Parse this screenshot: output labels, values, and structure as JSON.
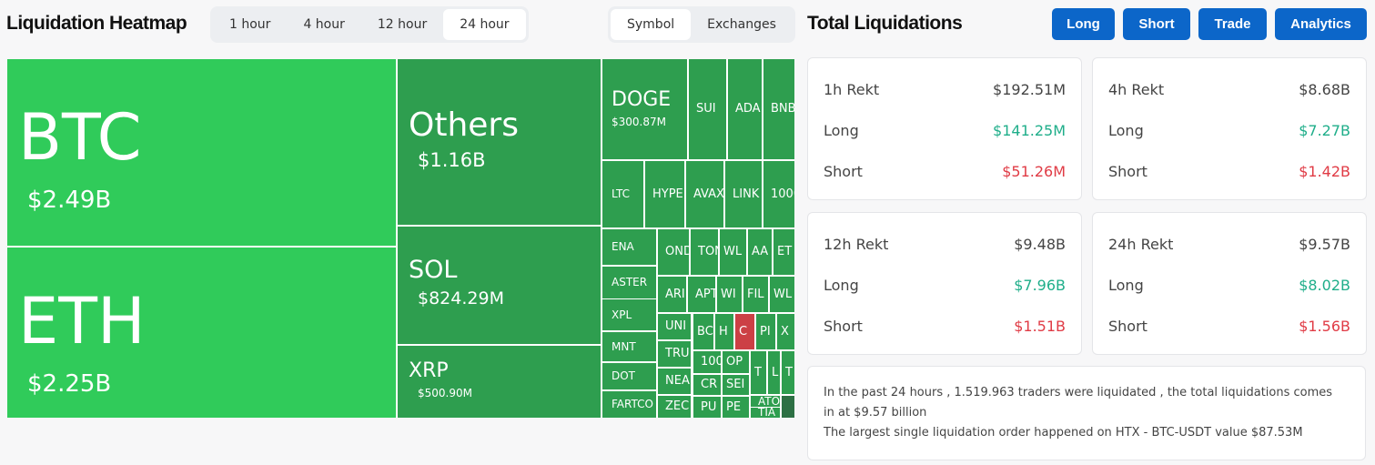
{
  "heatmap": {
    "title": "Liquidation Heatmap",
    "timeframes": [
      "1 hour",
      "4 hour",
      "12 hour",
      "24 hour"
    ],
    "active_timeframe": "24 hour",
    "views": [
      "Symbol",
      "Exchanges"
    ],
    "active_view": "Symbol",
    "colors": {
      "bright_green": "#30cb5a",
      "green": "#2e9e4f",
      "red": "#cc4045",
      "dark_green": "#2d7044"
    },
    "cells": [
      {
        "label": "BTC",
        "value": "$2.49B",
        "color": "#30cb5a"
      },
      {
        "label": "ETH",
        "value": "$2.25B",
        "color": "#30cb5a"
      },
      {
        "label": "Others",
        "value": "$1.16B",
        "color": "#2e9e4f"
      },
      {
        "label": "SOL",
        "value": "$824.29M",
        "color": "#2e9e4f"
      },
      {
        "label": "XRP",
        "value": "$500.90M",
        "color": "#2e9e4f"
      },
      {
        "label": "DOGE",
        "value": "$300.87M",
        "color": "#2e9e4f"
      },
      {
        "label": "SUI",
        "color": "#2e9e4f"
      },
      {
        "label": "ADA",
        "color": "#2e9e4f"
      },
      {
        "label": "BNB",
        "color": "#2e9e4f"
      },
      {
        "label": "LTC",
        "color": "#2e9e4f"
      },
      {
        "label": "HYPE",
        "color": "#2e9e4f"
      },
      {
        "label": "AVAX",
        "color": "#2e9e4f"
      },
      {
        "label": "LINK",
        "color": "#2e9e4f"
      },
      {
        "label": "1000",
        "color": "#2e9e4f"
      },
      {
        "label": "ENA",
        "color": "#2e9e4f"
      },
      {
        "label": "ASTER",
        "color": "#2e9e4f"
      },
      {
        "label": "XPL",
        "color": "#2e9e4f"
      },
      {
        "label": "MNT",
        "color": "#2e9e4f"
      },
      {
        "label": "DOT",
        "color": "#2e9e4f"
      },
      {
        "label": "FARTCO",
        "color": "#2e9e4f"
      },
      {
        "label": "OND",
        "color": "#2e9e4f"
      },
      {
        "label": "TON",
        "color": "#2e9e4f"
      },
      {
        "label": "WL",
        "color": "#2e9e4f"
      },
      {
        "label": "AA",
        "color": "#2e9e4f"
      },
      {
        "label": "ET",
        "color": "#2e9e4f"
      },
      {
        "label": "ARI",
        "color": "#2e9e4f"
      },
      {
        "label": "APT",
        "color": "#2e9e4f"
      },
      {
        "label": "WI",
        "color": "#2e9e4f"
      },
      {
        "label": "FIL",
        "color": "#2e9e4f"
      },
      {
        "label": "WL",
        "color": "#2e9e4f"
      },
      {
        "label": "UNI",
        "color": "#2e9e4f"
      },
      {
        "label": "TRU",
        "color": "#2e9e4f"
      },
      {
        "label": "NEA",
        "color": "#2e9e4f"
      },
      {
        "label": "ZEC",
        "color": "#2e9e4f"
      },
      {
        "label": "BC",
        "color": "#2e9e4f"
      },
      {
        "label": "H",
        "color": "#2e9e4f"
      },
      {
        "label": "C",
        "color": "#cc4045"
      },
      {
        "label": "PI",
        "color": "#2e9e4f"
      },
      {
        "label": "X",
        "color": "#2e9e4f"
      },
      {
        "label": "100",
        "color": "#2e9e4f"
      },
      {
        "label": "OP",
        "color": "#2e9e4f"
      },
      {
        "label": "CR",
        "color": "#2e9e4f"
      },
      {
        "label": "SEI",
        "color": "#2e9e4f"
      },
      {
        "label": "PU",
        "color": "#2e9e4f"
      },
      {
        "label": "PE",
        "color": "#2e9e4f"
      },
      {
        "label": "T",
        "color": "#2e9e4f"
      },
      {
        "label": "L",
        "color": "#2e9e4f"
      },
      {
        "label": "T",
        "color": "#2e9e4f"
      },
      {
        "label": "ATO",
        "color": "#2e9e4f"
      },
      {
        "label": "TIA",
        "color": "#2e9e4f"
      },
      {
        "label": "",
        "color": "#2d7044"
      }
    ]
  },
  "totals": {
    "title": "Total Liquidations",
    "buttons": [
      "Long",
      "Short",
      "Trade",
      "Analytics"
    ],
    "cards": [
      {
        "title": "1h Rekt",
        "total": "$192.51M",
        "long_label": "Long",
        "long": "$141.25M",
        "short_label": "Short",
        "short": "$51.26M"
      },
      {
        "title": "4h Rekt",
        "total": "$8.68B",
        "long_label": "Long",
        "long": "$7.27B",
        "short_label": "Short",
        "short": "$1.42B"
      },
      {
        "title": "12h Rekt",
        "total": "$9.48B",
        "long_label": "Long",
        "long": "$7.96B",
        "short_label": "Short",
        "short": "$1.51B"
      },
      {
        "title": "24h Rekt",
        "total": "$9.57B",
        "long_label": "Long",
        "long": "$8.02B",
        "short_label": "Short",
        "short": "$1.56B"
      }
    ],
    "summary_line1": "In the past 24 hours , 1.519.963 traders were liquidated , the total liquidations comes in at $9.57 billion",
    "summary_line2": "The largest single liquidation order happened on HTX - BTC-USDT value $87.53M",
    "long_color": "#1fae8a",
    "short_color": "#e03b45"
  }
}
